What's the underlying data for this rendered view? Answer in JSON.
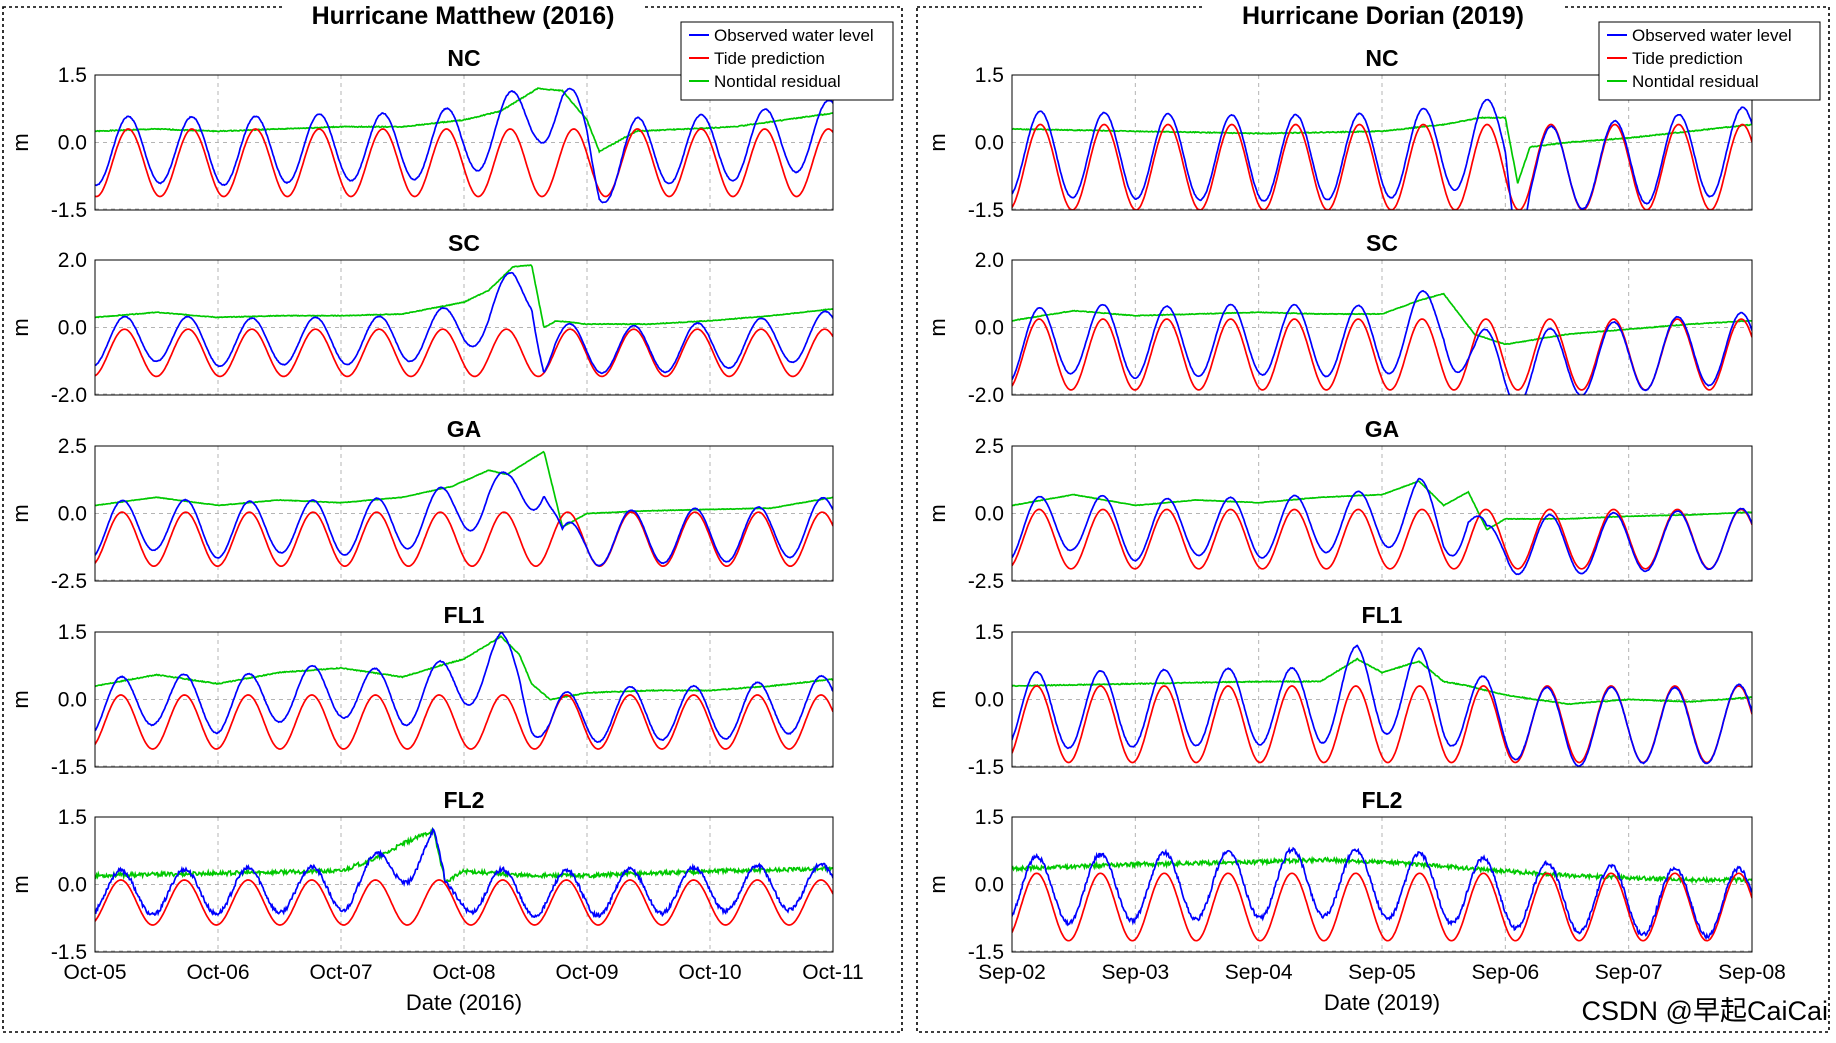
{
  "watermark": "CSDN @早起CaiCai",
  "colors": {
    "observed": "#0000ff",
    "tide": "#ff0000",
    "residual": "#00c800"
  },
  "chart_data": [
    {
      "type": "line",
      "title": "Hurricane Matthew (2016)",
      "xlabel": "Date (2016)",
      "x_ticks": [
        "Oct-05",
        "Oct-06",
        "Oct-07",
        "Oct-08",
        "Oct-09",
        "Oct-10",
        "Oct-11"
      ],
      "xlim_days": [
        0,
        6
      ],
      "legend": {
        "placement": "top-right",
        "entries": [
          "Observed water level",
          "Tide prediction",
          "Nontidal residual"
        ]
      },
      "tide_period_days": 0.5175,
      "panels": [
        {
          "title": "NC",
          "ylabel": "m",
          "ylim": [
            -1.5,
            1.5
          ],
          "yticks": [
            "1.5",
            "0.0",
            "-1.5"
          ],
          "tide": {
            "mean": -0.45,
            "amplitude": 0.75,
            "phase_days": 0.27
          },
          "residual_x": [
            0,
            0.5,
            1,
            1.5,
            2,
            2.5,
            3,
            3.3,
            3.6,
            3.8,
            4.0,
            4.1,
            4.4,
            4.8,
            5.2,
            5.6,
            6.0
          ],
          "residual_y": [
            0.25,
            0.3,
            0.25,
            0.3,
            0.35,
            0.35,
            0.5,
            0.7,
            1.2,
            1.15,
            0.5,
            -0.2,
            0.25,
            0.3,
            0.35,
            0.5,
            0.65
          ]
        },
        {
          "title": "SC",
          "ylabel": "m",
          "ylim": [
            -2.0,
            2.0
          ],
          "yticks": [
            "2.0",
            "0.0",
            "-2.0"
          ],
          "tide": {
            "mean": -0.75,
            "amplitude": 0.7,
            "phase_days": 0.24
          },
          "residual_x": [
            0,
            0.5,
            1,
            1.5,
            2,
            2.5,
            3,
            3.2,
            3.4,
            3.55,
            3.65,
            3.75,
            4.0,
            4.5,
            5.0,
            5.5,
            6.0
          ],
          "residual_y": [
            0.3,
            0.45,
            0.3,
            0.35,
            0.35,
            0.4,
            0.75,
            1.1,
            1.8,
            1.85,
            0.0,
            0.2,
            0.1,
            0.1,
            0.2,
            0.35,
            0.55
          ]
        },
        {
          "title": "GA",
          "ylabel": "m",
          "ylim": [
            -2.5,
            2.5
          ],
          "yticks": [
            "2.5",
            "0.0",
            "-2.5"
          ],
          "tide": {
            "mean": -0.95,
            "amplitude": 1.0,
            "phase_days": 0.22
          },
          "residual_x": [
            0,
            0.5,
            1,
            1.5,
            2,
            2.5,
            2.9,
            3.2,
            3.35,
            3.65,
            3.8,
            4.0,
            4.5,
            5.0,
            5.5,
            6.0
          ],
          "residual_y": [
            0.3,
            0.6,
            0.3,
            0.5,
            0.4,
            0.6,
            1.0,
            1.6,
            1.45,
            2.3,
            -0.5,
            0.0,
            0.1,
            0.15,
            0.2,
            0.6
          ]
        },
        {
          "title": "FL1",
          "ylabel": "m",
          "ylim": [
            -1.5,
            1.5
          ],
          "yticks": [
            "1.5",
            "0.0",
            "-1.5"
          ],
          "tide": {
            "mean": -0.5,
            "amplitude": 0.6,
            "phase_days": 0.21
          },
          "residual_x": [
            0,
            0.5,
            1,
            1.5,
            2,
            2.5,
            2.8,
            3.0,
            3.3,
            3.45,
            3.55,
            3.7,
            4.0,
            4.5,
            5.0,
            5.5,
            6.0
          ],
          "residual_y": [
            0.3,
            0.55,
            0.35,
            0.6,
            0.7,
            0.5,
            0.75,
            0.9,
            1.4,
            1.0,
            0.35,
            0.0,
            0.15,
            0.2,
            0.2,
            0.3,
            0.45
          ]
        },
        {
          "title": "FL2",
          "ylabel": "m",
          "ylim": [
            -1.5,
            1.5
          ],
          "yticks": [
            "1.5",
            "0.0",
            "-1.5"
          ],
          "tide": {
            "mean": -0.4,
            "amplitude": 0.5,
            "phase_days": 0.21
          },
          "residual_x": [
            0,
            1,
            2,
            2.3,
            2.5,
            2.75,
            2.85,
            3.0,
            3.5,
            4.0,
            5.0,
            6.0
          ],
          "residual_y": [
            0.2,
            0.25,
            0.3,
            0.6,
            0.9,
            1.2,
            0.05,
            0.3,
            0.2,
            0.2,
            0.3,
            0.35
          ]
        }
      ]
    },
    {
      "type": "line",
      "title": "Hurricane Dorian (2019)",
      "xlabel": "Date (2019)",
      "x_ticks": [
        "Sep-02",
        "Sep-03",
        "Sep-04",
        "Sep-05",
        "Sep-06",
        "Sep-07",
        "Sep-08"
      ],
      "xlim_days": [
        0,
        6
      ],
      "legend": {
        "placement": "top-right",
        "entries": [
          "Observed water level",
          "Tide prediction",
          "Nontidal residual"
        ]
      },
      "tide_period_days": 0.5175,
      "panels": [
        {
          "title": "NC",
          "ylabel": "m",
          "ylim": [
            -1.5,
            1.5
          ],
          "yticks": [
            "1.5",
            "0.0",
            "-1.5"
          ],
          "tide": {
            "mean": -0.55,
            "amplitude": 0.95,
            "phase_days": 0.23
          },
          "residual_x": [
            0,
            1,
            2,
            3,
            3.5,
            3.8,
            4.0,
            4.1,
            4.2,
            4.5,
            5.0,
            5.5,
            6.0
          ],
          "residual_y": [
            0.3,
            0.25,
            0.2,
            0.25,
            0.4,
            0.55,
            0.55,
            -0.9,
            -0.1,
            0.0,
            0.1,
            0.25,
            0.4
          ]
        },
        {
          "title": "SC",
          "ylabel": "m",
          "ylim": [
            -2.0,
            2.0
          ],
          "yticks": [
            "2.0",
            "0.0",
            "-2.0"
          ],
          "tide": {
            "mean": -0.8,
            "amplitude": 1.05,
            "phase_days": 0.22
          },
          "residual_x": [
            0,
            0.5,
            1,
            1.5,
            2,
            2.5,
            3,
            3.3,
            3.5,
            3.75,
            4.0,
            4.5,
            5.0,
            5.5,
            6.0
          ],
          "residual_y": [
            0.2,
            0.5,
            0.35,
            0.4,
            0.45,
            0.4,
            0.4,
            0.8,
            1.0,
            -0.2,
            -0.5,
            -0.2,
            -0.05,
            0.1,
            0.2
          ]
        },
        {
          "title": "GA",
          "ylabel": "m",
          "ylim": [
            -2.5,
            2.5
          ],
          "yticks": [
            "2.5",
            "0.0",
            "-2.5"
          ],
          "tide": {
            "mean": -0.95,
            "amplitude": 1.1,
            "phase_days": 0.22
          },
          "residual_x": [
            0,
            0.5,
            1,
            1.5,
            2,
            2.5,
            3,
            3.3,
            3.5,
            3.7,
            3.85,
            4.0,
            4.5,
            5.0,
            5.5,
            6.0
          ],
          "residual_y": [
            0.3,
            0.7,
            0.3,
            0.5,
            0.4,
            0.6,
            0.7,
            1.2,
            0.3,
            0.8,
            -0.6,
            -0.2,
            -0.2,
            -0.1,
            -0.05,
            0.05
          ]
        },
        {
          "title": "FL1",
          "ylabel": "m",
          "ylim": [
            -1.5,
            1.5
          ],
          "yticks": [
            "1.5",
            "0.0",
            "-1.5"
          ],
          "tide": {
            "mean": -0.55,
            "amplitude": 0.85,
            "phase_days": 0.2
          },
          "residual_x": [
            0,
            1,
            2,
            2.5,
            2.8,
            3.0,
            3.3,
            3.5,
            3.7,
            4.0,
            4.5,
            5.0,
            5.5,
            6.0
          ],
          "residual_y": [
            0.3,
            0.35,
            0.4,
            0.4,
            0.9,
            0.6,
            0.85,
            0.4,
            0.3,
            0.1,
            -0.1,
            0.0,
            -0.05,
            0.05
          ]
        },
        {
          "title": "FL2",
          "ylabel": "m",
          "ylim": [
            -1.5,
            1.5
          ],
          "yticks": [
            "1.5",
            "0.0",
            "-1.5"
          ],
          "tide": {
            "mean": -0.5,
            "amplitude": 0.75,
            "phase_days": 0.2
          },
          "residual_x": [
            0,
            1,
            2,
            2.5,
            3,
            3.5,
            4,
            4.5,
            5,
            5.5,
            6.0
          ],
          "residual_y": [
            0.35,
            0.45,
            0.5,
            0.55,
            0.5,
            0.4,
            0.3,
            0.2,
            0.15,
            0.1,
            0.1
          ]
        }
      ]
    }
  ]
}
